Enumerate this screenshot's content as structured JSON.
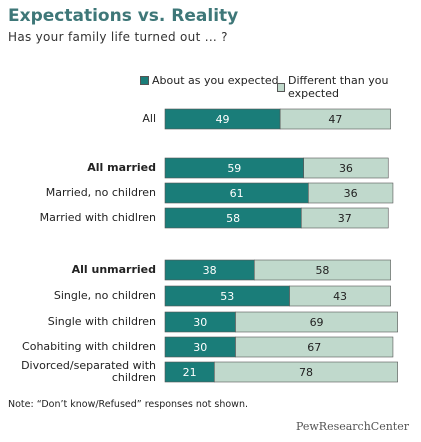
{
  "chart_data": {
    "type": "stacked-barh",
    "title": "Expectations vs. Reality",
    "subtitle": "Has your family life turned out ... ?",
    "categories": [
      "All",
      "All married",
      "Married, no children",
      "Married with chidlren",
      "All unmarried",
      "Single, no children",
      "Single with children",
      "Cohabiting with children",
      "Divorced/separated with children"
    ],
    "series": [
      {
        "name": "About as you expected",
        "color": "#1a7d79",
        "values": [
          49,
          59,
          61,
          58,
          38,
          53,
          30,
          30,
          21
        ]
      },
      {
        "name": "Different than you expected",
        "color": "#c0d9cc",
        "values": [
          47,
          36,
          36,
          37,
          58,
          43,
          69,
          67,
          78
        ]
      }
    ],
    "note": "Note: “Don’t know/Refused” responses not shown.",
    "source": "PewResearchCenter"
  }
}
